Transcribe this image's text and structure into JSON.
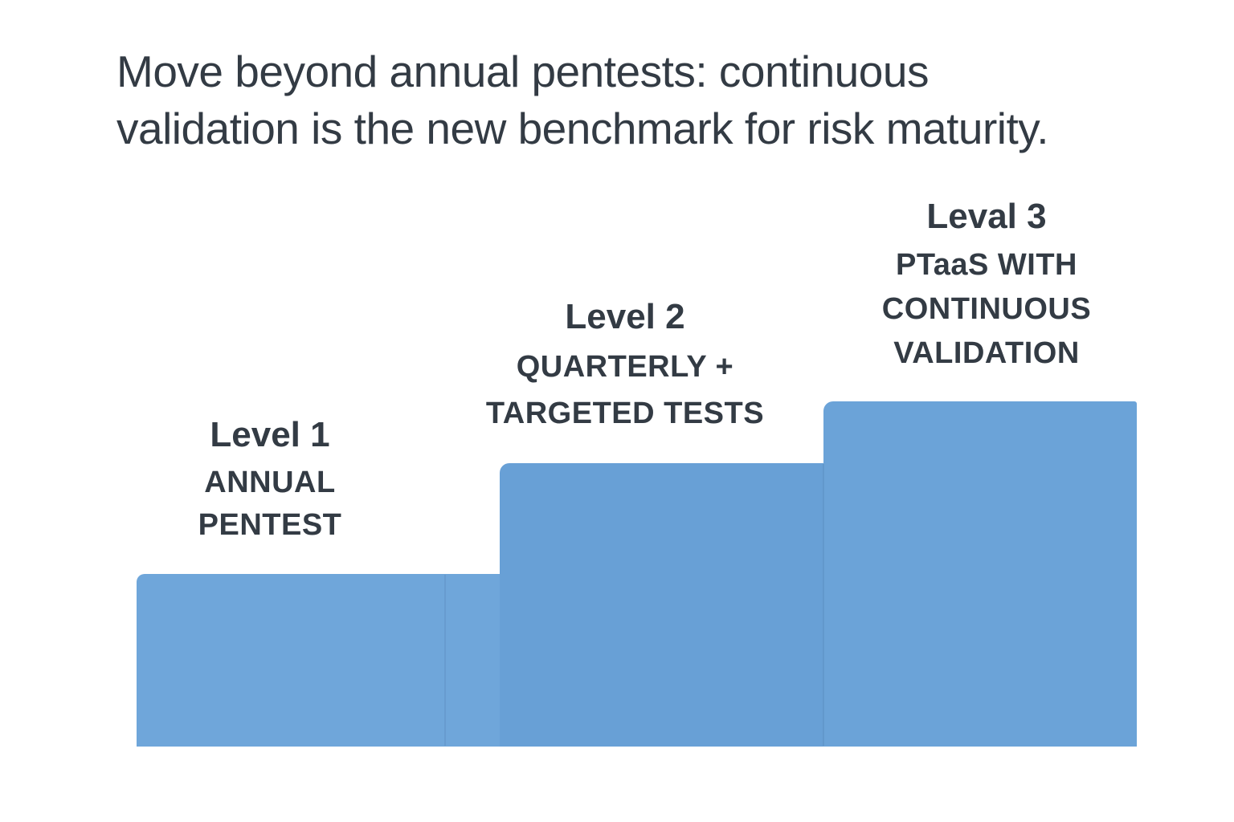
{
  "title": {
    "text": "Move beyond annual pentests: continuous validation is the new benchmark for risk maturity.",
    "lines": [
      "Move beyond annual pentests: continuous",
      "validation is the new benchmark for risk maturity."
    ]
  },
  "levels": [
    {
      "heading": "Level 1",
      "label": "ANNUAL PENTEST",
      "label_lines": [
        "ANNUAL",
        "PENTEST"
      ]
    },
    {
      "heading": "Level 2",
      "label": "QUARTERLY + TARGETED TESTS",
      "label_lines": [
        "QUARTERLY +",
        "TARGETED TESTS"
      ]
    },
    {
      "heading": "Leval 3",
      "label": "PTaaS WITH CONTINUOUS VALIDATION",
      "label_lines": [
        "PTaaS WITH",
        "CONTINUOUS",
        "VALIDATION"
      ]
    }
  ],
  "colors": {
    "background": "#ffffff",
    "text": "#333b44",
    "bar": "#6ca4d9"
  },
  "chart_data": {
    "type": "bar",
    "title": "Move beyond annual pentests: continuous validation is the new benchmark for risk maturity.",
    "categories": [
      "Level 1",
      "Level 2",
      "Leval 3"
    ],
    "values": [
      0.5,
      0.82,
      1.0
    ],
    "bar_labels": [
      "ANNUAL PENTEST",
      "QUARTERLY + TARGETED TESTS",
      "PTaaS WITH CONTINUOUS VALIDATION"
    ],
    "bar_colors": [
      "#6fa6da",
      "#68a0d6",
      "#6ba3d8"
    ],
    "xlabel": "",
    "ylabel": "",
    "ylim": [
      0,
      1
    ],
    "grid": false,
    "legend": false,
    "layout_hint": "ascending staircase of three flat-topped bars, labels above each bar, no axes"
  }
}
